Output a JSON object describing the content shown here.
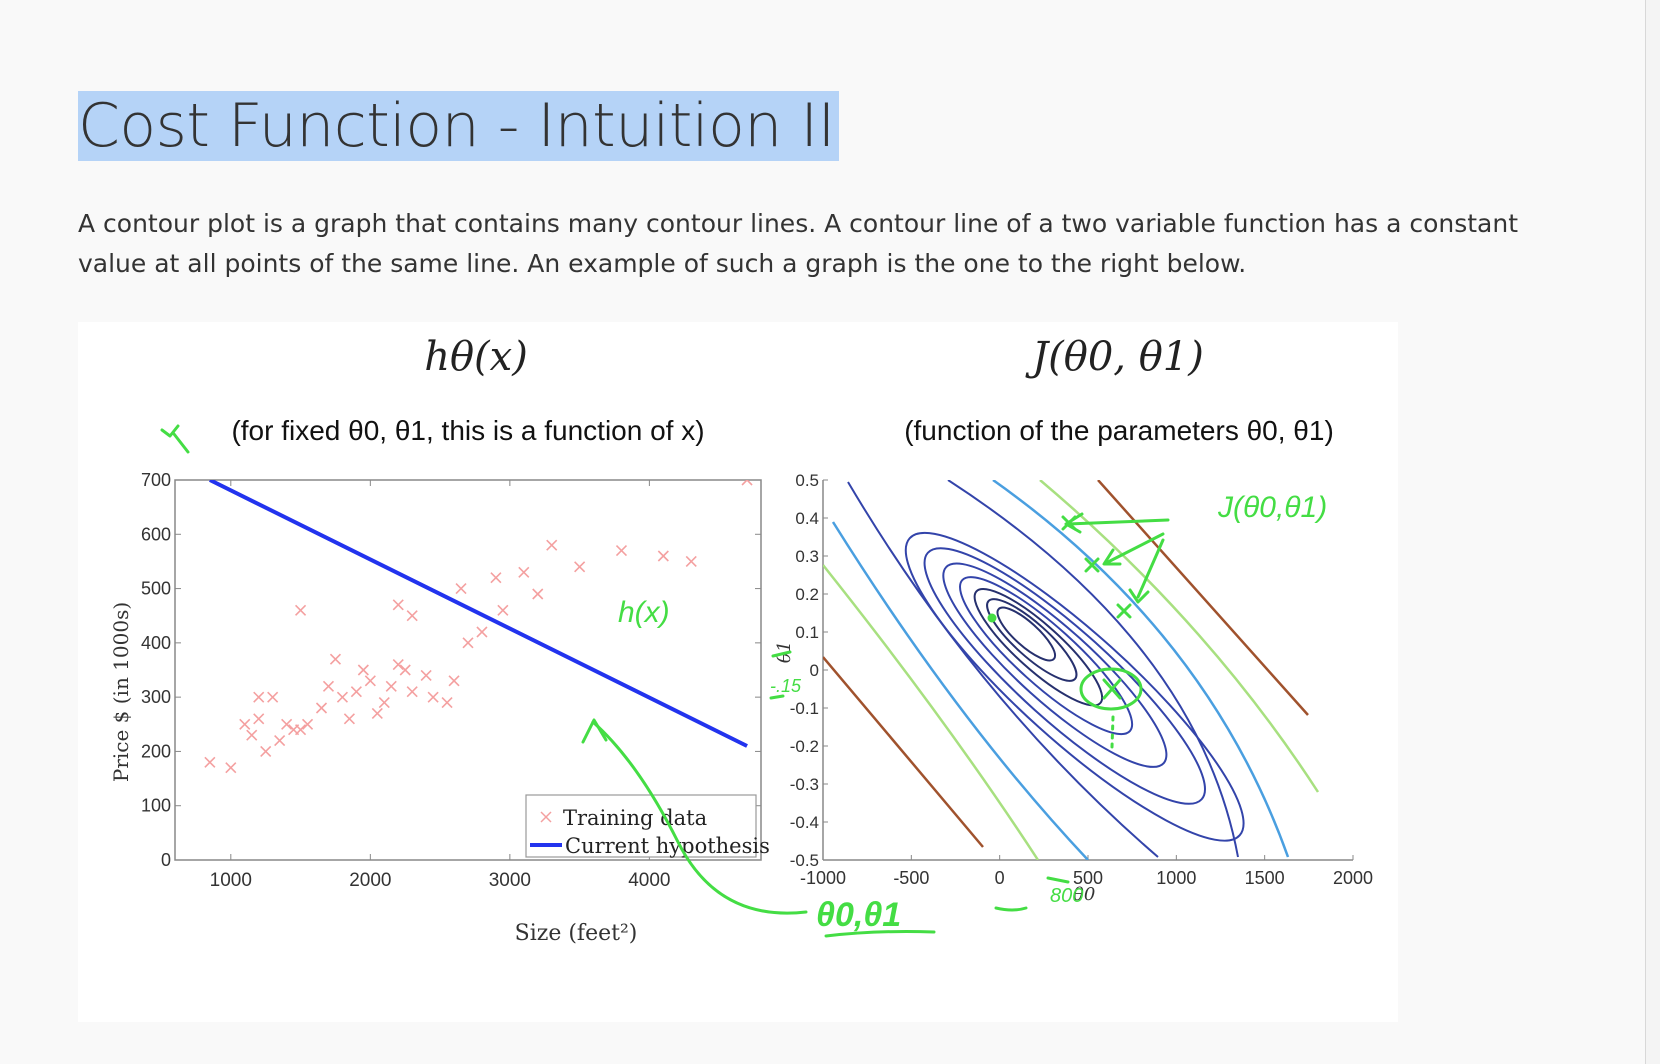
{
  "page": {
    "title": "Cost Function - Intuition II",
    "intro": "A contour plot is a graph that contains many contour lines. A contour line of a two variable function has a constant value at all points of the same line. An example of such a graph is the one to the right below."
  },
  "colors": {
    "selection": "#b5d3f7",
    "hypothesis": "#2233ee",
    "training": "#f4a0a0",
    "annotation": "#44dd44",
    "contour_outer": "#a0522d",
    "contour_mid": "#a8e080",
    "contour_blue": "#4a9fe0",
    "contour_inner": "#3344aa"
  },
  "left_plot": {
    "heading": "hθ(x)",
    "subtitle": "(for fixed θ0, θ1, this is a function of x)",
    "xlabel": "Size (feet²)",
    "ylabel": "Price $ (in 1000s)",
    "legend": {
      "training": "Training data",
      "hypothesis": "Current hypothesis"
    }
  },
  "right_plot": {
    "heading": "J(θ0, θ1)",
    "subtitle": "(function of the parameters θ0, θ1)",
    "xlabel": "θ0",
    "ylabel": "θ1"
  },
  "annotations": {
    "hx": "h(x)",
    "j": "J(θ0,θ1)",
    "theta": "θ0,θ1",
    "minus015": "-.15",
    "x800": "800"
  },
  "chart_data": [
    {
      "type": "scatter",
      "xlabel": "Size (feet²)",
      "ylabel": "Price $ (in 1000s)",
      "xlim": [
        600,
        4800
      ],
      "ylim": [
        0,
        700
      ],
      "xticks": [
        1000,
        2000,
        3000,
        4000
      ],
      "yticks": [
        0,
        100,
        200,
        300,
        400,
        500,
        600,
        700
      ],
      "legend": "bottom-right",
      "series": [
        {
          "name": "Training data",
          "points": [
            [
              850,
              180
            ],
            [
              1000,
              170
            ],
            [
              1100,
              250
            ],
            [
              1150,
              230
            ],
            [
              1200,
              260
            ],
            [
              1250,
              200
            ],
            [
              1200,
              300
            ],
            [
              1300,
              300
            ],
            [
              1350,
              220
            ],
            [
              1400,
              250
            ],
            [
              1450,
              240
            ],
            [
              1500,
              240
            ],
            [
              1550,
              250
            ],
            [
              1650,
              280
            ],
            [
              1700,
              320
            ],
            [
              1750,
              370
            ],
            [
              1800,
              300
            ],
            [
              1850,
              260
            ],
            [
              1900,
              310
            ],
            [
              1950,
              350
            ],
            [
              2000,
              330
            ],
            [
              2050,
              270
            ],
            [
              2100,
              290
            ],
            [
              2150,
              320
            ],
            [
              2200,
              360
            ],
            [
              2250,
              350
            ],
            [
              2300,
              310
            ],
            [
              2400,
              340
            ],
            [
              2450,
              300
            ],
            [
              2550,
              290
            ],
            [
              2600,
              330
            ],
            [
              2700,
              400
            ],
            [
              2800,
              420
            ],
            [
              2900,
              520
            ],
            [
              2950,
              460
            ],
            [
              3100,
              530
            ],
            [
              3200,
              490
            ],
            [
              3300,
              580
            ],
            [
              3500,
              540
            ],
            [
              3800,
              570
            ],
            [
              4100,
              560
            ],
            [
              4300,
              550
            ],
            [
              1500,
              460
            ],
            [
              2200,
              470
            ],
            [
              2300,
              450
            ],
            [
              2650,
              500
            ],
            [
              4700,
              700
            ]
          ]
        },
        {
          "name": "Current hypothesis",
          "line": [
            [
              850,
              700
            ],
            [
              4700,
              210
            ]
          ]
        }
      ]
    },
    {
      "type": "contour",
      "xlabel": "θ0",
      "ylabel": "θ1",
      "xlim": [
        -1000,
        2000
      ],
      "ylim": [
        -0.5,
        0.5
      ],
      "xticks": [
        -1000,
        -500,
        0,
        500,
        1000,
        1500,
        2000
      ],
      "yticks": [
        -0.5,
        -0.4,
        -0.3,
        -0.2,
        -0.1,
        0,
        0.1,
        0.2,
        0.3,
        0.4,
        0.5
      ],
      "minimum": [
        0,
        0.14
      ],
      "marked_points": [
        [
          800,
          -0.15
        ],
        [
          700,
          0.32
        ],
        [
          950,
          0.2
        ],
        [
          1250,
          0.09
        ]
      ]
    }
  ]
}
